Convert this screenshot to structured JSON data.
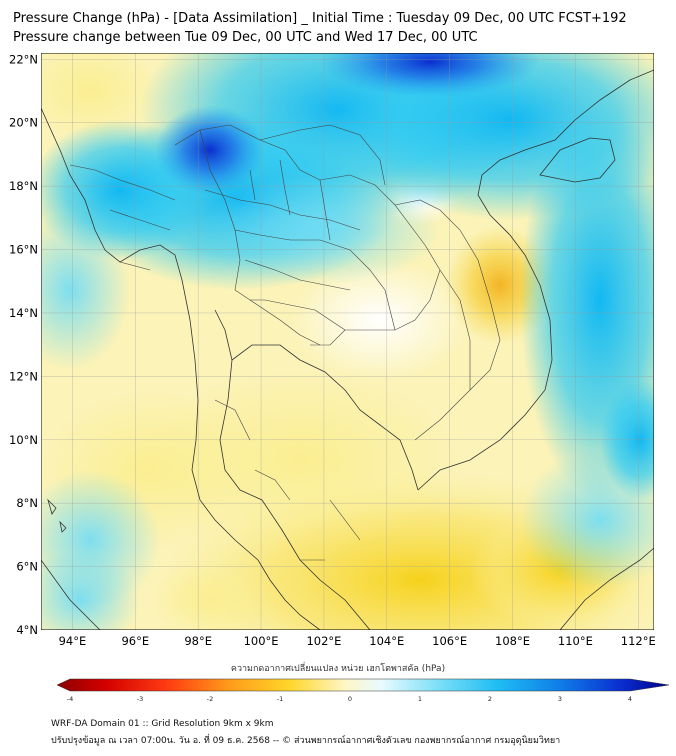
{
  "title_line1": "Pressure Change (hPa) - [Data Assimilation] _ Initial Time : Tuesday 09 Dec, 00 UTC FCST+192",
  "title_line2": "Pressure change between Tue 09 Dec, 00 UTC and Wed 17 Dec, 00 UTC",
  "colorbar": {
    "label": "ความกดอากาศเปลี่ยนแปลง หน่วย เฮกโตพาสคัล (hPa)",
    "min": -4,
    "max": 4,
    "ticks": [
      "-4",
      "-3",
      "-2",
      "-1",
      "0",
      "1",
      "2",
      "3",
      "4"
    ],
    "negative_color": "#8b0000",
    "positive_color": "#00008b"
  },
  "map": {
    "lon_labels": [
      "94°E",
      "96°E",
      "98°E",
      "100°E",
      "102°E",
      "104°E",
      "106°E",
      "108°E",
      "110°E",
      "112°E"
    ],
    "lat_labels": [
      "22°N",
      "20°N",
      "18°N",
      "16°N",
      "14°N",
      "12°N",
      "10°N",
      "8°N",
      "6°N",
      "4°N"
    ],
    "lon_range": [
      93,
      112.5
    ],
    "lat_range": [
      4,
      22.2
    ]
  },
  "footer_line1": "WRF-DA Domain 01 :: Grid Resolution 9km x 9km",
  "footer_line2": "ปรับปรุงข้อมูล ณ เวลา 07:00น. วัน อ. ที่ 09 ธ.ค. 2568 -- © ส่วนพยากรณ์อากาศเชิงตัวเลข กองพยากรณ์อากาศ กรมอุตุนิยมวิทยา"
}
